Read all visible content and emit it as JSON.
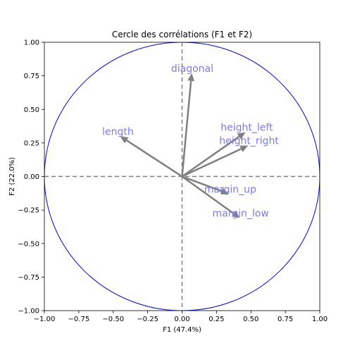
{
  "chart_data": {
    "type": "scatter",
    "title": "Cercle des corrélations (F1 et F2)",
    "xlabel": "F1 (47.4%)",
    "ylabel": "F2 (22.0%)",
    "xlim": [
      -1.0,
      1.0
    ],
    "ylim": [
      -1.0,
      1.0
    ],
    "xticks": [
      "−1.00",
      "−0.75",
      "−0.50",
      "−0.25",
      "0.00",
      "0.25",
      "0.50",
      "0.75",
      "1.00"
    ],
    "yticks": [
      "−1.00",
      "−0.75",
      "−0.50",
      "−0.25",
      "0.00",
      "0.25",
      "0.50",
      "0.75",
      "1.00"
    ],
    "grid": false,
    "circle": {
      "radius": 1.0,
      "color": "#0000ff"
    },
    "reference_lines": {
      "x": 0,
      "y": 0,
      "style": "dashed",
      "color": "#808080"
    },
    "arrow_color": "#808080",
    "label_color": "#7b7bef",
    "variables": [
      {
        "name": "diagonal",
        "x": 0.07,
        "y": 0.77,
        "label_x": -0.08,
        "label_y": 0.77
      },
      {
        "name": "length",
        "x": -0.45,
        "y": 0.3,
        "label_x": -0.58,
        "label_y": 0.3
      },
      {
        "name": "height_left",
        "x": 0.46,
        "y": 0.33,
        "label_x": 0.28,
        "label_y": 0.33
      },
      {
        "name": "height_right",
        "x": 0.48,
        "y": 0.23,
        "label_x": 0.27,
        "label_y": 0.23
      },
      {
        "name": "margin_up",
        "x": 0.34,
        "y": -0.13,
        "label_x": 0.16,
        "label_y": -0.13
      },
      {
        "name": "margin_low",
        "x": 0.42,
        "y": -0.31,
        "label_x": 0.22,
        "label_y": -0.31
      }
    ]
  }
}
